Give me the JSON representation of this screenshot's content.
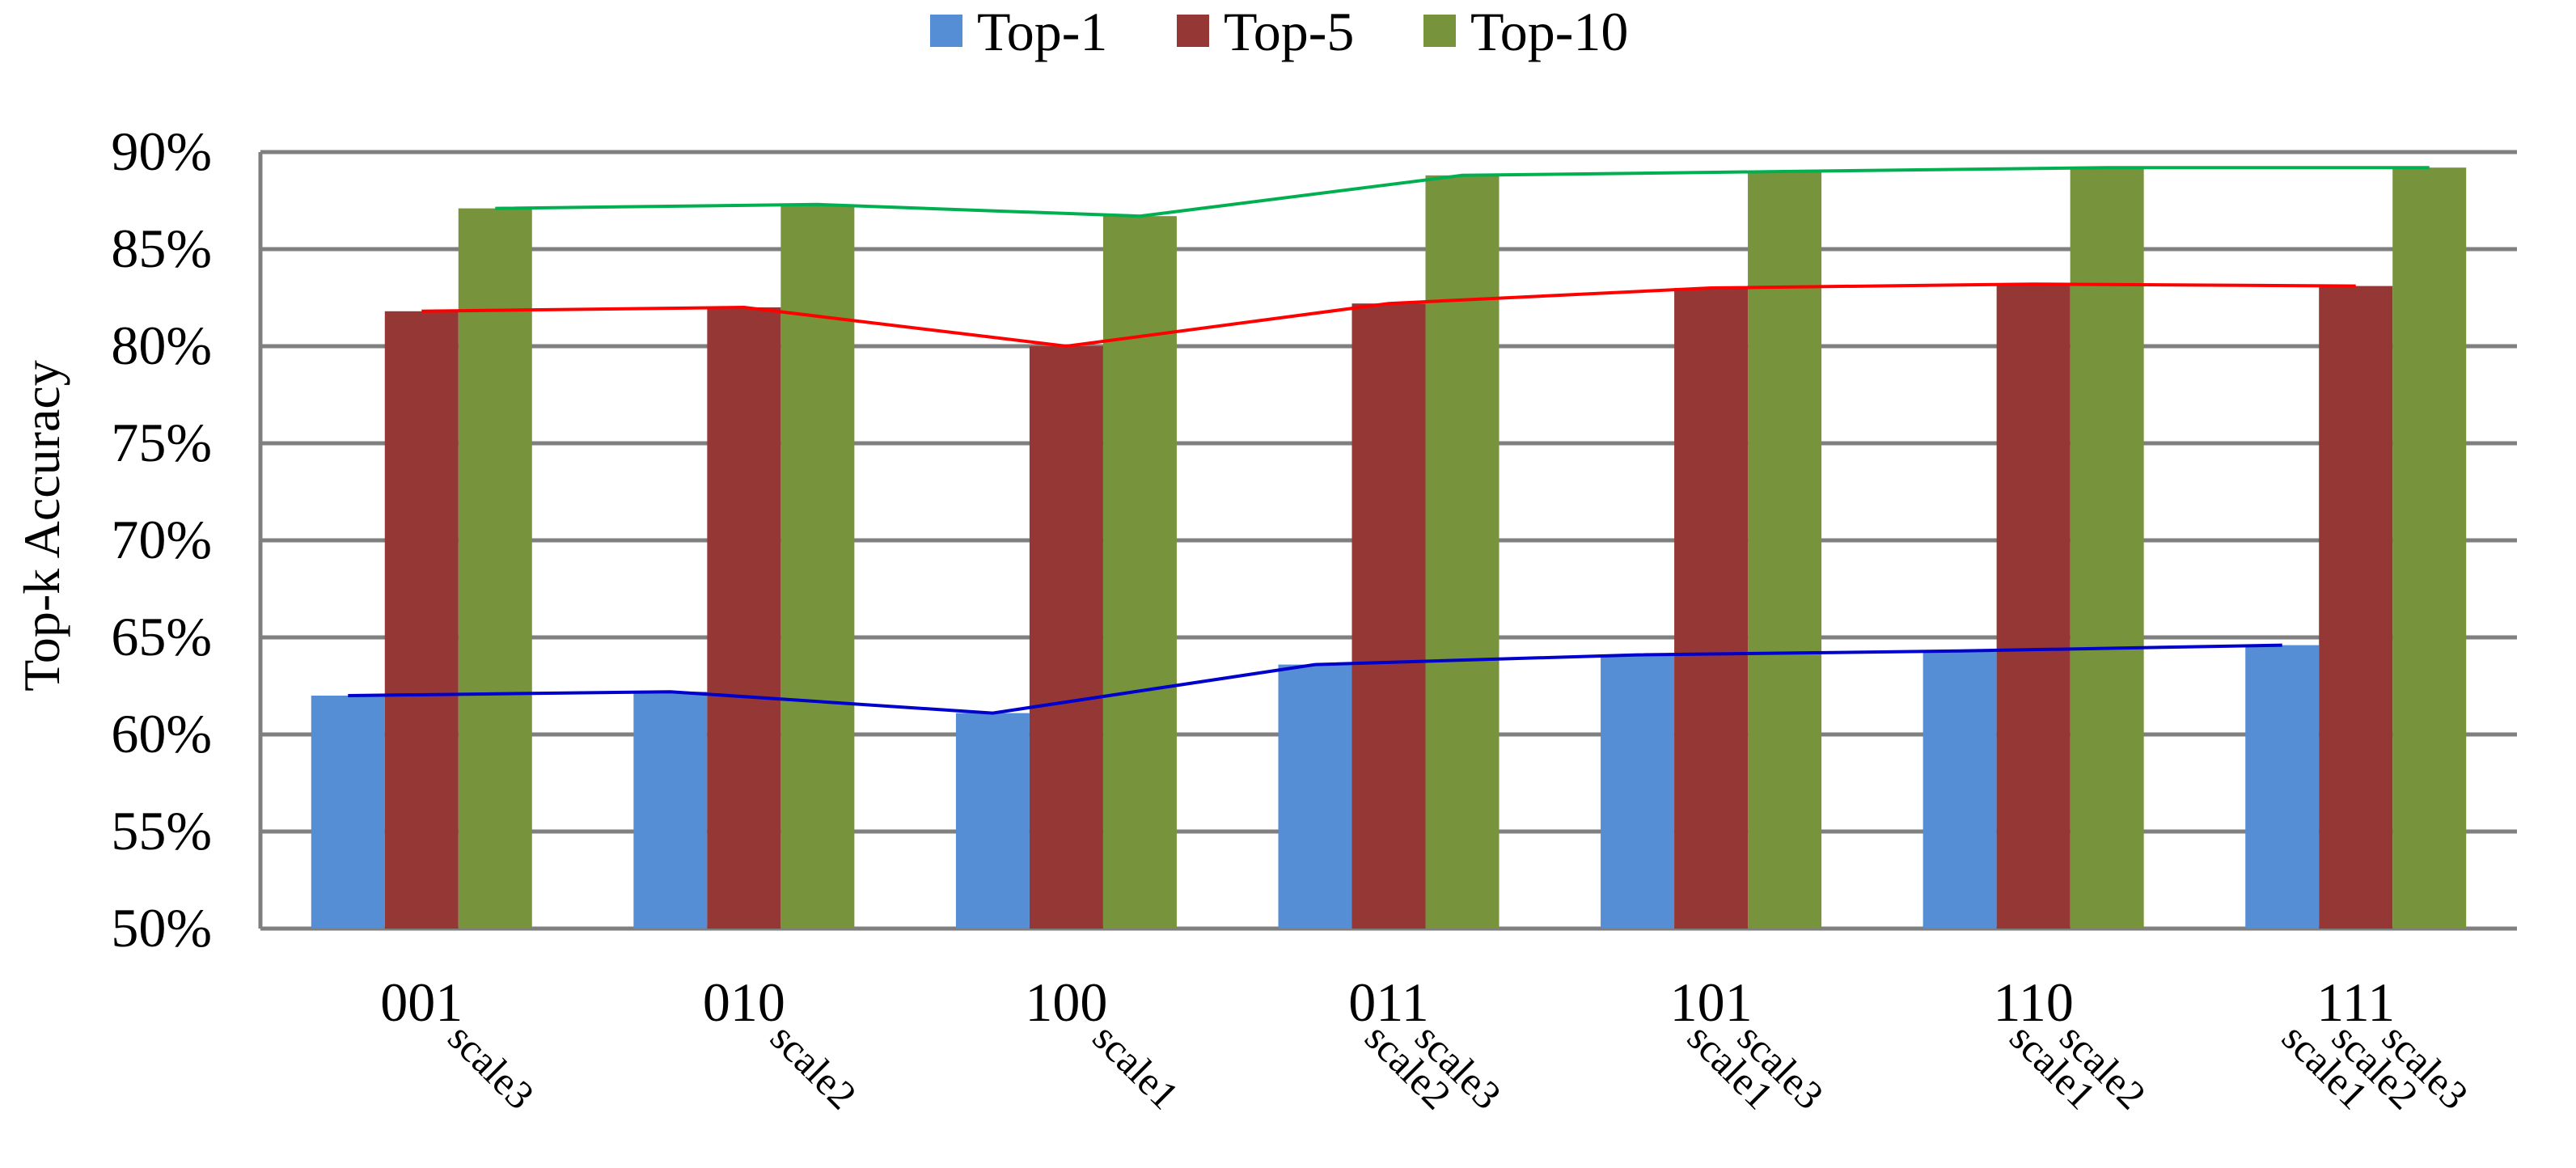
{
  "chart_data": {
    "type": "bar",
    "title": "",
    "xlabel": "",
    "ylabel": "Top-k Accuracy",
    "ylim": [
      50,
      90
    ],
    "yticks": [
      "50%",
      "55%",
      "60%",
      "65%",
      "70%",
      "75%",
      "80%",
      "85%",
      "90%"
    ],
    "grid": true,
    "legend_position": "top",
    "categories": [
      "001",
      "010",
      "100",
      "011",
      "101",
      "110",
      "111"
    ],
    "category_sublabels": [
      [
        "scale3"
      ],
      [
        "scale2"
      ],
      [
        "scale1"
      ],
      [
        "scale2",
        "scale3"
      ],
      [
        "scale1",
        "scale3"
      ],
      [
        "scale1",
        "scale2"
      ],
      [
        "scale1",
        "scale2",
        "scale3"
      ]
    ],
    "series": [
      {
        "name": "Top-1",
        "color": "#558ED5",
        "line_color": "#0000CC",
        "values": [
          62.0,
          62.2,
          61.1,
          63.6,
          64.1,
          64.3,
          64.6
        ]
      },
      {
        "name": "Top-5",
        "color": "#953735",
        "line_color": "#FF0000",
        "values": [
          81.8,
          82.0,
          80.0,
          82.2,
          83.0,
          83.2,
          83.1
        ]
      },
      {
        "name": "Top-10",
        "color": "#77933C",
        "line_color": "#00B050",
        "values": [
          87.1,
          87.3,
          86.7,
          88.8,
          89.0,
          89.2,
          89.2
        ]
      }
    ]
  }
}
